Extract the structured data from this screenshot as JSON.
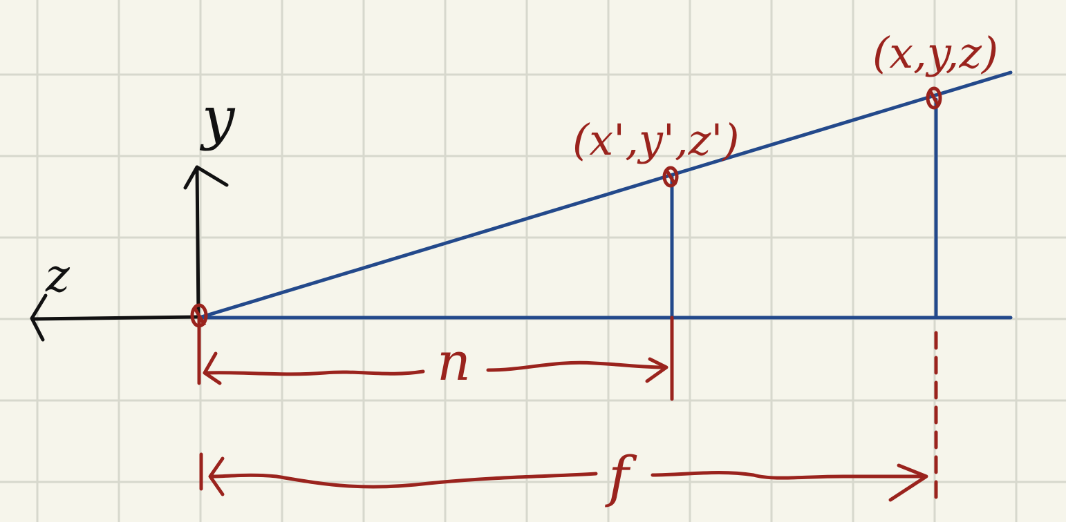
{
  "colors": {
    "background": "#f6f5eb",
    "grid": "#d7d8cd",
    "blue_lines": "#23498b",
    "red_marks": "#9a231d",
    "black_axes": "#111111"
  },
  "axes": {
    "y_label": "y",
    "z_label": "z"
  },
  "points": {
    "near_point": "(x',y',z')",
    "far_point": "(x,y,z)"
  },
  "distances": {
    "near_label": "n",
    "far_label": "f"
  }
}
